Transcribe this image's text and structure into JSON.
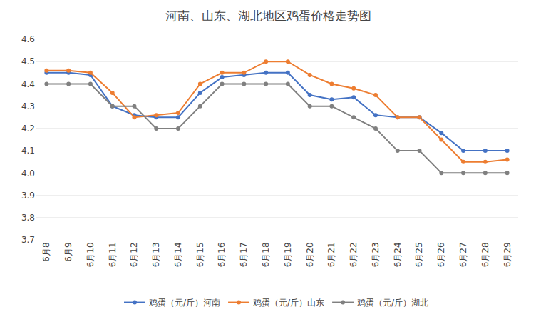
{
  "chart_data": {
    "type": "line",
    "title": "河南、山东、湖北地区鸡蛋价格走势图",
    "categories": [
      "6月8",
      "6月9",
      "6月10",
      "6月11",
      "6月12",
      "6月13",
      "6月14",
      "6月15",
      "6月16",
      "6月17",
      "6月18",
      "6月19",
      "6月20",
      "6月21",
      "6月22",
      "6月23",
      "6月24",
      "6月25",
      "6月26",
      "6月27",
      "6月28",
      "6月29"
    ],
    "series": [
      {
        "name": "鸡蛋（元/斤）河南",
        "color": "#4472C4",
        "values": [
          4.45,
          4.45,
          4.44,
          4.3,
          4.26,
          4.25,
          4.25,
          4.36,
          4.43,
          4.44,
          4.45,
          4.45,
          4.35,
          4.33,
          4.34,
          4.26,
          4.25,
          4.25,
          4.18,
          4.1,
          4.1,
          4.1
        ]
      },
      {
        "name": "鸡蛋（元/斤）山东",
        "color": "#ED7D31",
        "values": [
          4.46,
          4.46,
          4.45,
          4.36,
          4.25,
          4.26,
          4.27,
          4.4,
          4.45,
          4.45,
          4.5,
          4.5,
          4.44,
          4.4,
          4.38,
          4.35,
          4.25,
          4.25,
          4.15,
          4.05,
          4.05,
          4.06
        ]
      },
      {
        "name": "鸡蛋（元/斤）湖北",
        "color": "#808080",
        "values": [
          4.4,
          4.4,
          4.4,
          4.3,
          4.3,
          4.2,
          4.2,
          4.3,
          4.4,
          4.4,
          4.4,
          4.4,
          4.3,
          4.3,
          4.25,
          4.2,
          4.1,
          4.1,
          4.0,
          4.0,
          4.0,
          4.0
        ]
      }
    ],
    "ylim": [
      3.7,
      4.6
    ],
    "yticks": [
      3.7,
      3.8,
      3.9,
      {
        "value": 4.0,
        "label": "4.0"
      },
      4.1,
      4.2,
      4.3,
      4.4,
      4.5,
      4.6
    ],
    "grid": true,
    "legend": "bottom",
    "marker": "circle"
  }
}
